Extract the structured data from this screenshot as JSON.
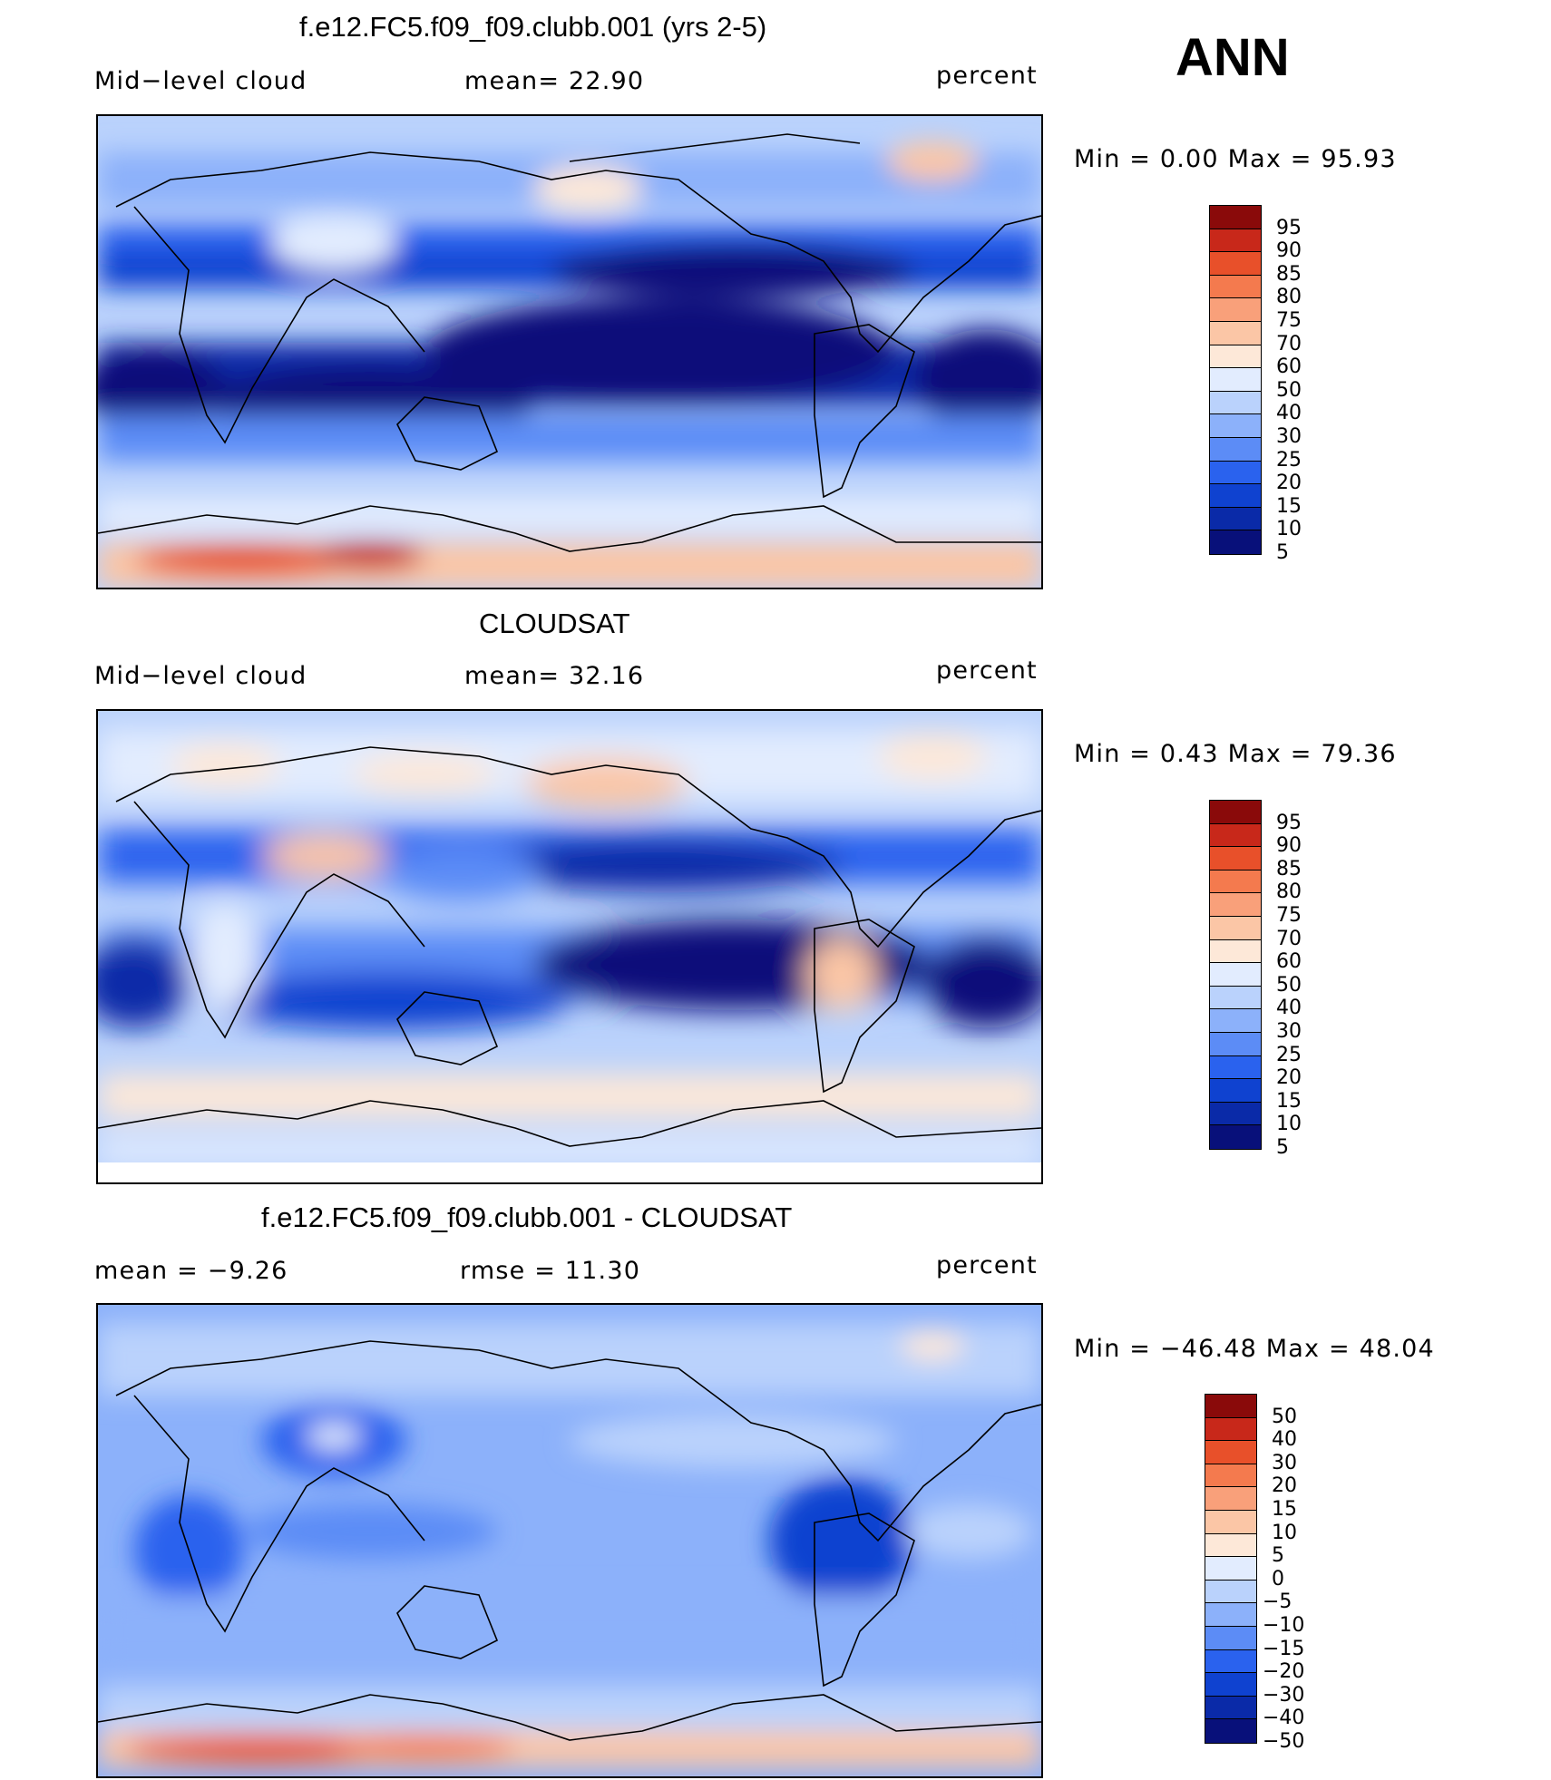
{
  "season": "ANN",
  "colors": {
    "ramp": [
      "#08107a",
      "#0a2aa8",
      "#0f42d0",
      "#2a62ee",
      "#5c8cf6",
      "#8cb1fa",
      "#bad2fc",
      "#e2ecfe",
      "#fde8d8",
      "#fbc6a6",
      "#f9a07a",
      "#f47a4e",
      "#e8502a",
      "#c8281a",
      "#8a0a0a"
    ],
    "land_outline": "#000000",
    "frame": "#000000"
  },
  "panels": [
    {
      "title": "f.e12.FC5.f09_f09.clubb.001 (yrs 2-5)",
      "left_label": "Mid−level cloud",
      "center_label": "mean=   22.90",
      "right_label": "percent",
      "minmax": "Min  =      0.00  Max  =    95.93",
      "colorbar_labels": [
        "95",
        "90",
        "85",
        "80",
        "75",
        "70",
        "60",
        "50",
        "40",
        "30",
        "25",
        "20",
        "15",
        "10",
        "5"
      ]
    },
    {
      "title": "CLOUDSAT",
      "left_label": "Mid−level cloud",
      "center_label": "mean=   32.16",
      "right_label": "percent",
      "minmax": "Min  =      0.43  Max  =    79.36",
      "colorbar_labels": [
        "95",
        "90",
        "85",
        "80",
        "75",
        "70",
        "60",
        "50",
        "40",
        "30",
        "25",
        "20",
        "15",
        "10",
        "5"
      ]
    },
    {
      "title": "f.e12.FC5.f09_f09.clubb.001 - CLOUDSAT",
      "left_label": "mean  =    −9.26",
      "center_label": "rmse  =    11.30",
      "right_label": "percent",
      "minmax": "Min  = −46.48  Max  =    48.04",
      "colorbar_labels": [
        "50",
        "40",
        "30",
        "20",
        "15",
        "10",
        "5",
        "0",
        "−5",
        "−10",
        "−15",
        "−20",
        "−30",
        "−40",
        "−50"
      ]
    }
  ]
}
